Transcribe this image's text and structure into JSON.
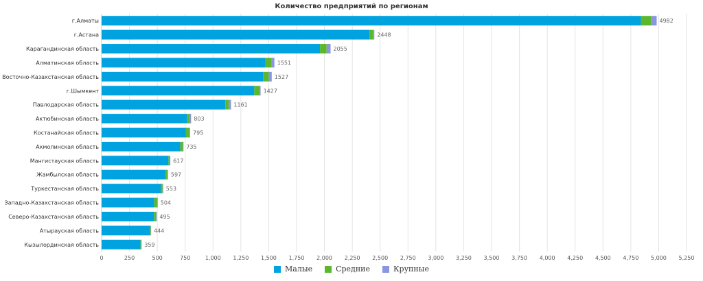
{
  "chart_data": {
    "type": "bar",
    "orientation": "horizontal",
    "stacked": true,
    "title": "Количество предприятий по регионам",
    "xlabel": "",
    "ylabel": "",
    "xlim": [
      0,
      5250
    ],
    "x_ticks": [
      "0",
      "250",
      "500",
      "750",
      "1,000",
      "1,250",
      "1,500",
      "1,750",
      "2,000",
      "2,250",
      "2,500",
      "2,750",
      "3,000",
      "3,250",
      "3,500",
      "3,750",
      "4,000",
      "4,250",
      "4,500",
      "4,750",
      "5,000",
      "5,250"
    ],
    "x_tick_values": [
      0,
      250,
      500,
      750,
      1000,
      1250,
      1500,
      1750,
      2000,
      2250,
      2500,
      2750,
      3000,
      3250,
      3500,
      3750,
      4000,
      4250,
      4500,
      4750,
      5000,
      5250
    ],
    "grid": "vertical",
    "legend_position": "bottom-center",
    "categories": [
      "г.Алматы",
      "г.Астана",
      "Карагандинская область",
      "Алматинская область",
      "Восточно-Казахстанская область",
      "г.Шымкент",
      "Павлодарская область",
      "Актюбинская область",
      "Костанайская область",
      "Акмолинская область",
      "Мангистауская область",
      "Жамбылская область",
      "Туркестанская область",
      "Западно-Казахстанская область",
      "Северо-Казахстанская область",
      "Атырауская область",
      "Кызылординская область"
    ],
    "totals": [
      4982,
      2448,
      2055,
      1551,
      1527,
      1427,
      1161,
      803,
      795,
      735,
      617,
      597,
      553,
      504,
      495,
      444,
      359
    ],
    "series": [
      {
        "name": "Малые",
        "color": "#00a3e0",
        "values": [
          4840,
          2405,
          1960,
          1470,
          1450,
          1370,
          1110,
          765,
          755,
          705,
          600,
          570,
          530,
          472,
          470,
          434,
          349
        ]
      },
      {
        "name": "Средние",
        "color": "#5bb82e",
        "values": [
          90,
          33,
          60,
          52,
          50,
          47,
          32,
          28,
          28,
          25,
          12,
          17,
          17,
          27,
          20,
          8,
          8
        ]
      },
      {
        "name": "Крупные",
        "color": "#8b96e0",
        "values": [
          52,
          10,
          35,
          29,
          27,
          10,
          19,
          10,
          12,
          5,
          5,
          10,
          6,
          5,
          5,
          2,
          2
        ]
      }
    ]
  }
}
